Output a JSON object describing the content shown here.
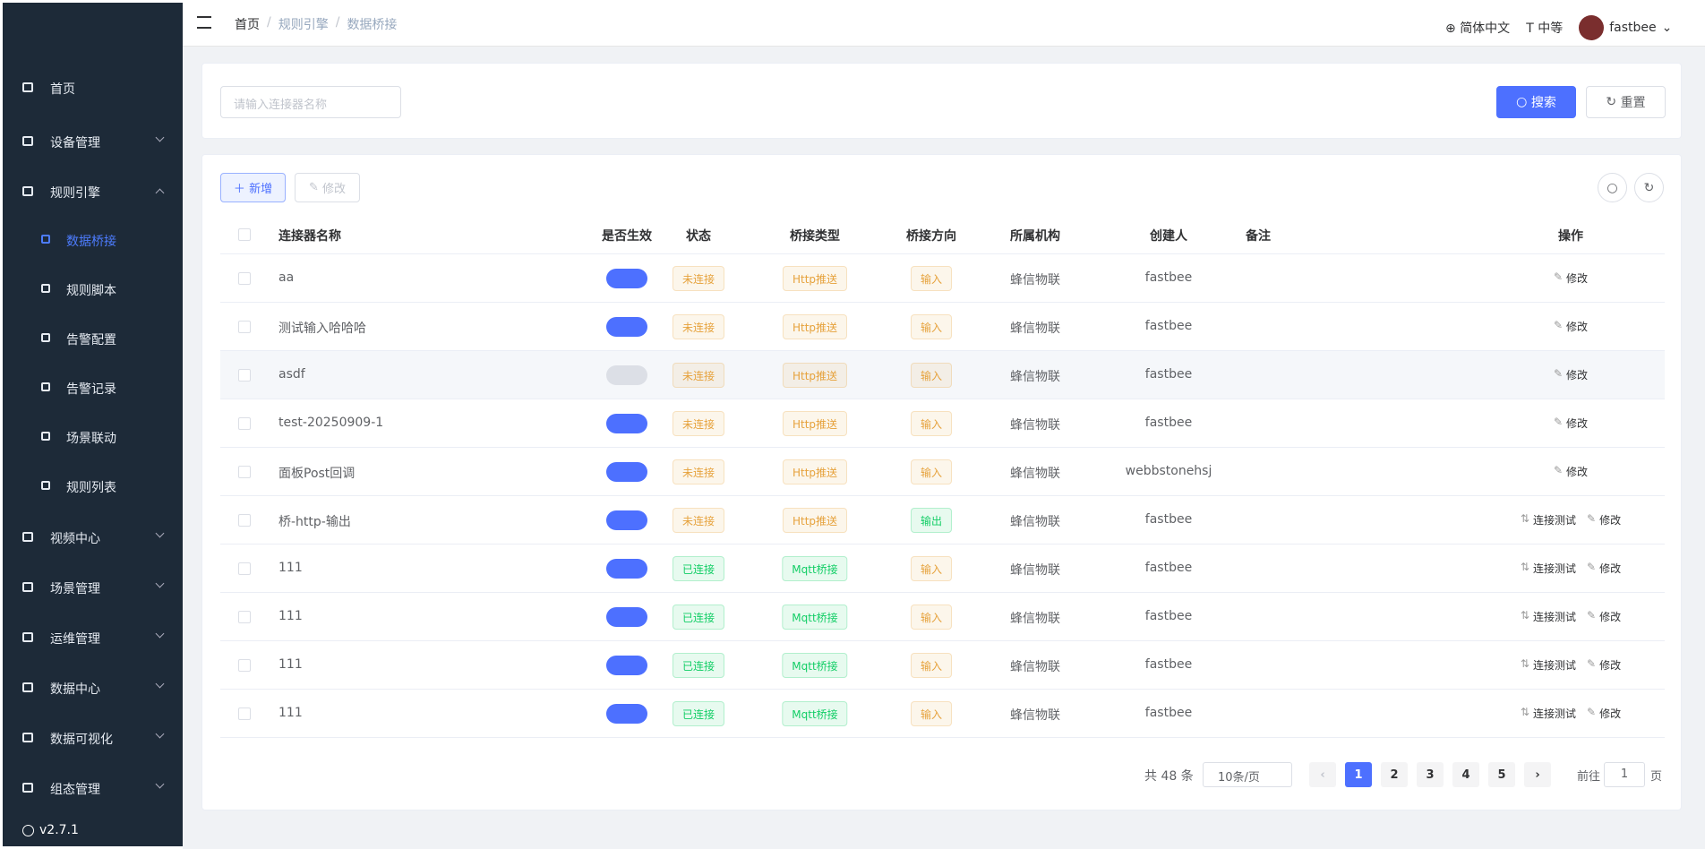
{
  "sidebar": {
    "menu": [
      {
        "label": "首页",
        "expandable": false
      },
      {
        "label": "设备管理",
        "expandable": true
      },
      {
        "label": "规则引擎",
        "expandable": true,
        "open": true,
        "children": [
          {
            "label": "数据桥接",
            "active": true
          },
          {
            "label": "规则脚本"
          },
          {
            "label": "告警配置"
          },
          {
            "label": "告警记录"
          },
          {
            "label": "场景联动"
          },
          {
            "label": "规则列表"
          }
        ]
      },
      {
        "label": "视频中心",
        "expandable": true
      },
      {
        "label": "场景管理",
        "expandable": true
      },
      {
        "label": "运维管理",
        "expandable": true
      },
      {
        "label": "数据中心",
        "expandable": true
      },
      {
        "label": "数据可视化",
        "expandable": true
      },
      {
        "label": "组态管理",
        "expandable": true
      }
    ],
    "version": "v2.7.1"
  },
  "header": {
    "breadcrumb": [
      "首页",
      "规则引擎",
      "数据桥接"
    ],
    "language": "简体中文",
    "size": "中等",
    "user": "fastbee"
  },
  "search": {
    "placeholder": "请输入连接器名称",
    "search_button": "搜索",
    "reset_button": "重置"
  },
  "toolbar": {
    "add": "新增",
    "edit": "修改"
  },
  "table": {
    "columns": [
      "连接器名称",
      "是否生效",
      "状态",
      "桥接类型",
      "桥接方向",
      "所属机构",
      "创建人",
      "备注",
      "操作"
    ],
    "rows": [
      {
        "name": "aa",
        "enabled": true,
        "status": {
          "text": "未连接",
          "color": "#e6a23c"
        },
        "type": {
          "text": "Http推送",
          "color": "#e6a23c"
        },
        "direction": {
          "text": "输入",
          "color": "#e6a23c"
        },
        "org": "蜂信物联",
        "creator": "fastbee",
        "actions": [
          "修改"
        ]
      },
      {
        "name": "测试输入哈哈哈",
        "enabled": true,
        "status": {
          "text": "未连接",
          "color": "#e6a23c"
        },
        "type": {
          "text": "Http推送",
          "color": "#e6a23c"
        },
        "direction": {
          "text": "输入",
          "color": "#e6a23c"
        },
        "org": "蜂信物联",
        "creator": "fastbee",
        "actions": [
          "修改"
        ]
      },
      {
        "name": "asdf",
        "enabled": false,
        "status": {
          "text": "未连接",
          "color": "#e6a23c"
        },
        "type": {
          "text": "Http推送",
          "color": "#e6a23c"
        },
        "direction": {
          "text": "输入",
          "color": "#e6a23c"
        },
        "org": "蜂信物联",
        "creator": "fastbee",
        "actions": [
          "修改"
        ]
      },
      {
        "name": "test-20250909-1",
        "enabled": true,
        "status": {
          "text": "未连接",
          "color": "#e6a23c"
        },
        "type": {
          "text": "Http推送",
          "color": "#e6a23c"
        },
        "direction": {
          "text": "输入",
          "color": "#e6a23c"
        },
        "org": "蜂信物联",
        "creator": "fastbee",
        "actions": [
          "修改"
        ]
      },
      {
        "name": "面板Post回调",
        "enabled": true,
        "status": {
          "text": "未连接",
          "color": "#e6a23c"
        },
        "type": {
          "text": "Http推送",
          "color": "#e6a23c"
        },
        "direction": {
          "text": "输入",
          "color": "#e6a23c"
        },
        "org": "蜂信物联",
        "creator": "webbstonehsj",
        "actions": [
          "修改"
        ]
      },
      {
        "name": "桥-http-输出",
        "enabled": true,
        "status": {
          "text": "未连接",
          "color": "#e6a23c"
        },
        "type": {
          "text": "Http推送",
          "color": "#e6a23c"
        },
        "direction": {
          "text": "输出",
          "color": "#13ce66"
        },
        "org": "蜂信物联",
        "creator": "fastbee",
        "actions": [
          "连接测试",
          "修改"
        ]
      },
      {
        "name": "111",
        "enabled": true,
        "status": {
          "text": "已连接",
          "color": "#13ce66"
        },
        "type": {
          "text": "Mqtt桥接",
          "color": "#13ce66"
        },
        "direction": {
          "text": "输入",
          "color": "#e6a23c"
        },
        "org": "蜂信物联",
        "creator": "fastbee",
        "actions": [
          "连接测试",
          "修改"
        ]
      },
      {
        "name": "111",
        "enabled": true,
        "status": {
          "text": "已连接",
          "color": "#13ce66"
        },
        "type": {
          "text": "Mqtt桥接",
          "color": "#13ce66"
        },
        "direction": {
          "text": "输入",
          "color": "#e6a23c"
        },
        "org": "蜂信物联",
        "creator": "fastbee",
        "actions": [
          "连接测试",
          "修改"
        ]
      },
      {
        "name": "111",
        "enabled": true,
        "status": {
          "text": "已连接",
          "color": "#13ce66"
        },
        "type": {
          "text": "Mqtt桥接",
          "color": "#13ce66"
        },
        "direction": {
          "text": "输入",
          "color": "#e6a23c"
        },
        "org": "蜂信物联",
        "creator": "fastbee",
        "actions": [
          "连接测试",
          "修改"
        ]
      },
      {
        "name": "111",
        "enabled": true,
        "status": {
          "text": "已连接",
          "color": "#13ce66"
        },
        "type": {
          "text": "Mqtt桥接",
          "color": "#13ce66"
        },
        "direction": {
          "text": "输入",
          "color": "#e6a23c"
        },
        "org": "蜂信物联",
        "creator": "fastbee",
        "actions": [
          "连接测试",
          "修改"
        ]
      }
    ]
  },
  "pagination": {
    "total": "共 48 条",
    "page_size": "10条/页",
    "pages": [
      1,
      2,
      3,
      4,
      5
    ],
    "current": 1,
    "goto": "前往",
    "goto_value": "1",
    "page_unit": "页"
  }
}
